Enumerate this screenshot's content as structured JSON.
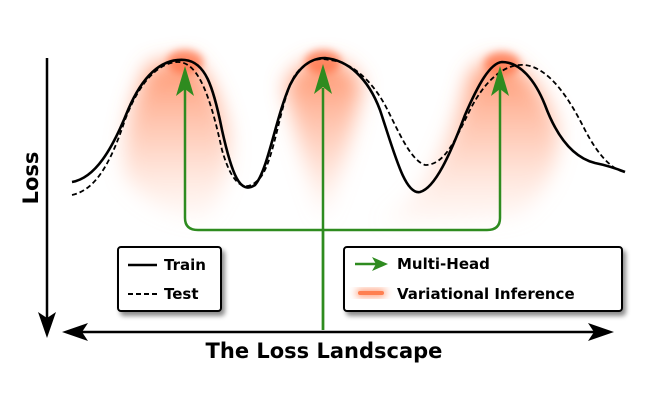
{
  "diagram": {
    "y_axis_label": "Loss",
    "x_axis_label": "The Loss Landscape",
    "legend_lines": {
      "train_label": "Train",
      "test_label": "Test"
    },
    "legend_methods": {
      "multihead_label": "Multi-Head",
      "variational_label": "Variational Inference"
    },
    "colors": {
      "curve": "#000000",
      "arrow": "#2e8b1f",
      "glow": "#ff7f50"
    }
  }
}
